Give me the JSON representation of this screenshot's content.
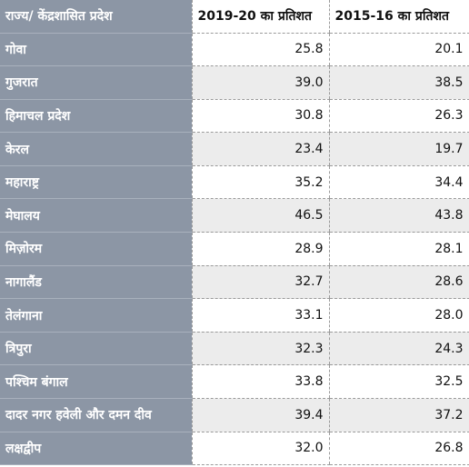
{
  "table": {
    "headers": {
      "state": "राज्य/ केंद्रशासित प्रदेश",
      "year_2019_20": "2019-20 का प्रतिशत",
      "year_2015_16": "2015-16 का प्रतिशत"
    },
    "rows": [
      {
        "state": "गोवा",
        "v2019": "25.8",
        "v2015": "20.1"
      },
      {
        "state": "गुजरात",
        "v2019": "39.0",
        "v2015": "38.5"
      },
      {
        "state": "हिमाचल प्रदेश",
        "v2019": "30.8",
        "v2015": "26.3"
      },
      {
        "state": "केरल",
        "v2019": "23.4",
        "v2015": "19.7"
      },
      {
        "state": "महाराष्ट्र",
        "v2019": "35.2",
        "v2015": "34.4"
      },
      {
        "state": "मेघालय",
        "v2019": "46.5",
        "v2015": "43.8"
      },
      {
        "state": "मिज़ोरम",
        "v2019": "28.9",
        "v2015": "28.1"
      },
      {
        "state": "नागालैंड",
        "v2019": "32.7",
        "v2015": "28.6"
      },
      {
        "state": "तेलंगाना",
        "v2019": "33.1",
        "v2015": "28.0"
      },
      {
        "state": "त्रिपुरा",
        "v2019": "32.3",
        "v2015": "24.3"
      },
      {
        "state": "पश्चिम बंगाल",
        "v2019": "33.8",
        "v2015": "32.5"
      },
      {
        "state": "दादर नगर हवेली और दमन दीव",
        "v2019": "39.4",
        "v2015": "37.2"
      },
      {
        "state": "लक्षद्वीप",
        "v2019": "32.0",
        "v2015": "26.8"
      }
    ]
  },
  "colors": {
    "state_column_bg": "#8c96a5",
    "alt_row_bg": "#ececec",
    "grid_line": "#9a9a9a"
  }
}
